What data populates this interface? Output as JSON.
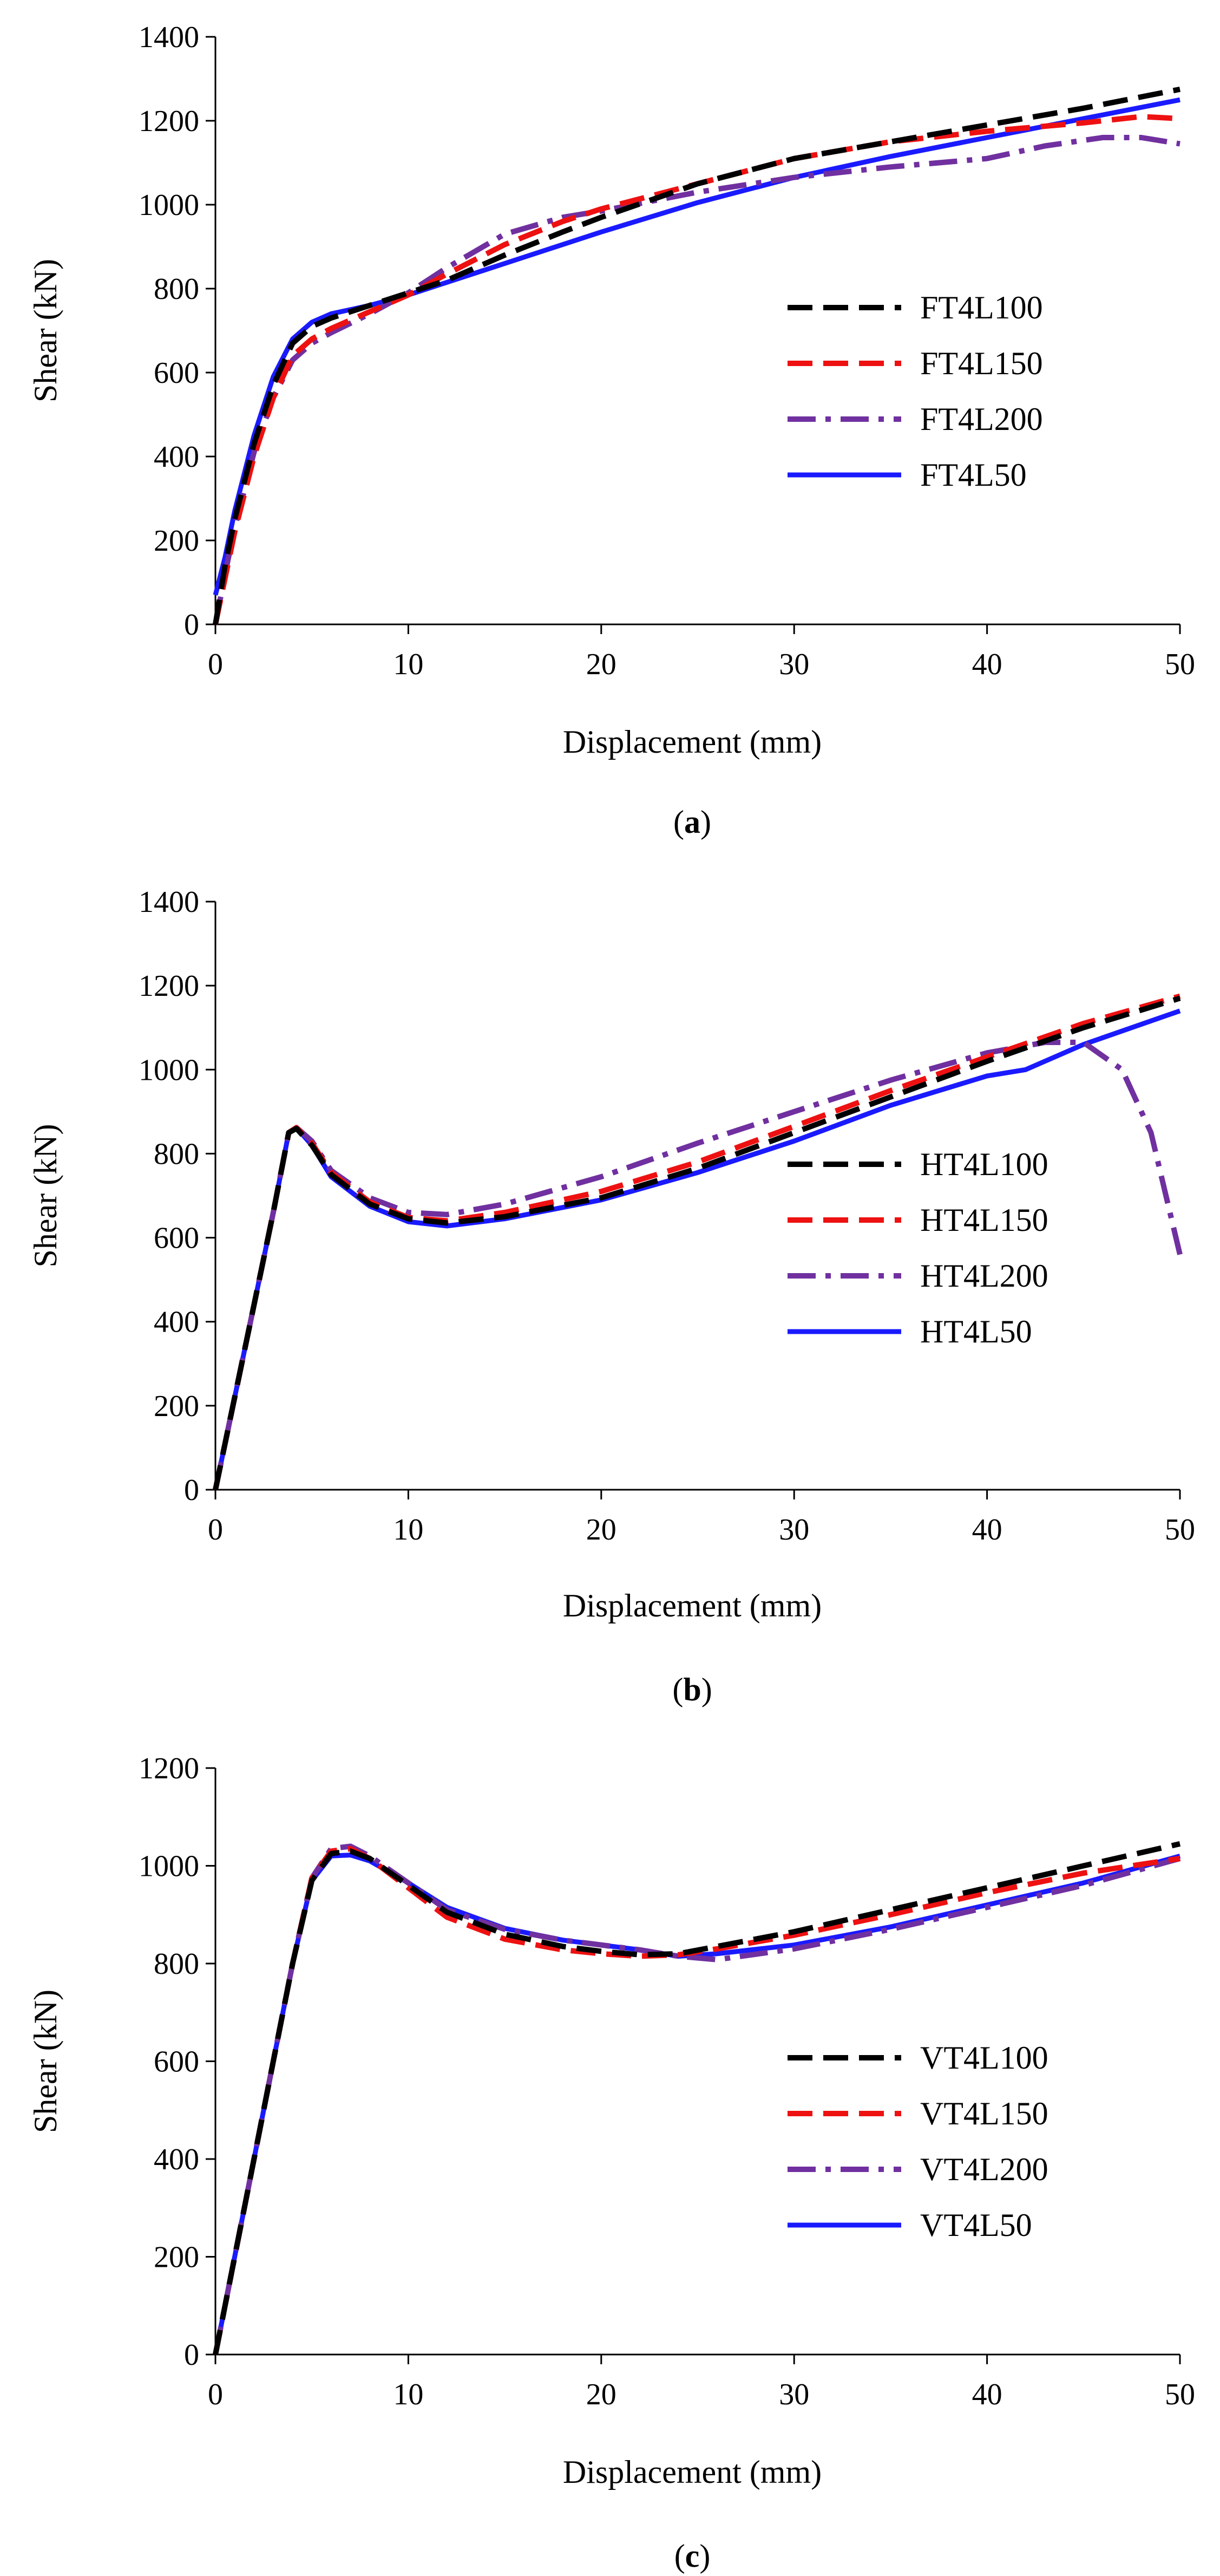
{
  "chart_data": [
    {
      "type": "line",
      "caption": "a",
      "xlabel": "Displacement (mm)",
      "ylabel": "Shear (kN)",
      "xlim": [
        0,
        50
      ],
      "ylim": [
        0,
        1400
      ],
      "xticks": [
        0,
        10,
        20,
        30,
        40,
        50
      ],
      "yticks": [
        0,
        200,
        400,
        600,
        800,
        1000,
        1200,
        1400
      ],
      "grid": false,
      "legend_position": "lower-right",
      "series": [
        {
          "name": "FT4L100",
          "color": "#000000",
          "style": "dash",
          "x": [
            0,
            0.5,
            1,
            2,
            3,
            4,
            5,
            6,
            8,
            10,
            12,
            15,
            18,
            20,
            25,
            30,
            35,
            40,
            45,
            50
          ],
          "y": [
            0,
            140,
            250,
            430,
            570,
            670,
            710,
            730,
            760,
            790,
            820,
            880,
            935,
            970,
            1050,
            1110,
            1150,
            1190,
            1230,
            1275
          ]
        },
        {
          "name": "FT4L150",
          "color": "#ee1111",
          "style": "dash",
          "x": [
            0,
            0.5,
            1,
            2,
            3,
            4,
            5,
            6,
            8,
            10,
            12,
            15,
            18,
            20,
            25,
            30,
            35,
            40,
            45,
            48,
            50
          ],
          "y": [
            0,
            110,
            220,
            400,
            540,
            640,
            680,
            705,
            745,
            785,
            835,
            905,
            960,
            990,
            1050,
            1110,
            1150,
            1175,
            1195,
            1210,
            1205
          ]
        },
        {
          "name": "FT4L200",
          "color": "#7030a0",
          "style": "dashdot",
          "x": [
            0,
            0.5,
            1,
            2,
            3,
            4,
            5,
            6,
            8,
            10,
            12,
            15,
            18,
            20,
            25,
            30,
            35,
            40,
            43,
            46,
            48,
            50
          ],
          "y": [
            0,
            120,
            230,
            410,
            540,
            630,
            670,
            695,
            740,
            790,
            850,
            930,
            970,
            985,
            1030,
            1065,
            1090,
            1110,
            1140,
            1160,
            1160,
            1145
          ]
        },
        {
          "name": "FT4L50",
          "color": "#1a1aff",
          "style": "solid",
          "x": [
            0,
            0.5,
            1,
            2,
            3,
            4,
            5,
            6,
            8,
            10,
            12,
            15,
            18,
            20,
            25,
            30,
            35,
            40,
            45,
            50
          ],
          "y": [
            70,
            160,
            270,
            450,
            590,
            680,
            720,
            740,
            760,
            785,
            815,
            860,
            905,
            935,
            1005,
            1065,
            1115,
            1160,
            1205,
            1250
          ]
        }
      ]
    },
    {
      "type": "line",
      "caption": "b",
      "xlabel": "Displacement (mm)",
      "ylabel": "Shear (kN)",
      "xlim": [
        0,
        50
      ],
      "ylim": [
        0,
        1400
      ],
      "xticks": [
        0,
        10,
        20,
        30,
        40,
        50
      ],
      "yticks": [
        0,
        200,
        400,
        600,
        800,
        1000,
        1200,
        1400
      ],
      "grid": false,
      "legend_position": "lower-right",
      "series": [
        {
          "name": "HT4L100",
          "color": "#000000",
          "style": "dash",
          "x": [
            0,
            1,
            2,
            3,
            3.8,
            4.2,
            5,
            6,
            8,
            10,
            12,
            15,
            20,
            25,
            30,
            35,
            40,
            45,
            50
          ],
          "y": [
            0,
            220,
            440,
            660,
            850,
            860,
            820,
            750,
            680,
            645,
            635,
            650,
            695,
            765,
            850,
            935,
            1020,
            1100,
            1170
          ]
        },
        {
          "name": "HT4L150",
          "color": "#ee1111",
          "style": "dash",
          "x": [
            0,
            1,
            2,
            3,
            3.8,
            4.2,
            5,
            6,
            8,
            10,
            12,
            15,
            20,
            25,
            30,
            35,
            40,
            45,
            50
          ],
          "y": [
            0,
            220,
            440,
            660,
            850,
            862,
            825,
            755,
            685,
            648,
            640,
            660,
            710,
            780,
            865,
            950,
            1030,
            1110,
            1175
          ]
        },
        {
          "name": "HT4L200",
          "color": "#7030a0",
          "style": "dashdot",
          "x": [
            0,
            1,
            2,
            3,
            3.8,
            4.2,
            5,
            6,
            8,
            10,
            12,
            15,
            20,
            25,
            30,
            35,
            40,
            43,
            45,
            47,
            48.5,
            50
          ],
          "y": [
            0,
            220,
            440,
            660,
            850,
            862,
            830,
            760,
            695,
            660,
            655,
            680,
            745,
            825,
            900,
            975,
            1040,
            1065,
            1065,
            1000,
            850,
            560
          ]
        },
        {
          "name": "HT4L50",
          "color": "#1a1aff",
          "style": "solid",
          "x": [
            0,
            1,
            2,
            3,
            3.8,
            4.2,
            5,
            6,
            8,
            10,
            12,
            15,
            20,
            25,
            30,
            35,
            40,
            42,
            45,
            50
          ],
          "y": [
            0,
            220,
            440,
            660,
            850,
            862,
            820,
            745,
            675,
            638,
            628,
            645,
            690,
            755,
            830,
            915,
            985,
            1000,
            1060,
            1140
          ]
        }
      ]
    },
    {
      "type": "line",
      "caption": "c",
      "xlabel": "Displacement (mm)",
      "ylabel": "Shear (kN)",
      "xlim": [
        0,
        50
      ],
      "ylim": [
        0,
        1200
      ],
      "xticks": [
        0,
        10,
        20,
        30,
        40,
        50
      ],
      "yticks": [
        0,
        200,
        400,
        600,
        800,
        1000,
        1200
      ],
      "grid": false,
      "legend_position": "lower-right",
      "series": [
        {
          "name": "VT4L100",
          "color": "#000000",
          "style": "dash",
          "x": [
            0,
            1,
            2,
            3,
            4,
            5,
            6,
            7,
            8,
            10,
            12,
            15,
            18,
            20,
            22,
            24,
            26,
            30,
            35,
            40,
            45,
            50
          ],
          "y": [
            0,
            200,
            400,
            600,
            800,
            970,
            1025,
            1030,
            1015,
            960,
            905,
            860,
            835,
            825,
            818,
            820,
            835,
            865,
            910,
            955,
            1000,
            1045
          ]
        },
        {
          "name": "VT4L150",
          "color": "#ee1111",
          "style": "dash",
          "x": [
            0,
            1,
            2,
            3,
            4,
            5,
            6,
            7,
            8,
            10,
            12,
            15,
            18,
            20,
            22,
            24,
            26,
            30,
            35,
            40,
            45,
            50
          ],
          "y": [
            0,
            200,
            400,
            600,
            800,
            975,
            1030,
            1035,
            1015,
            955,
            895,
            850,
            828,
            820,
            815,
            818,
            830,
            858,
            900,
            945,
            985,
            1015
          ]
        },
        {
          "name": "VT4L200",
          "color": "#7030a0",
          "style": "dashdot",
          "x": [
            0,
            1,
            2,
            3,
            4,
            5,
            6,
            7,
            8,
            10,
            12,
            15,
            18,
            20,
            22,
            24,
            26,
            30,
            35,
            40,
            45,
            50
          ],
          "y": [
            0,
            200,
            400,
            600,
            800,
            975,
            1035,
            1040,
            1020,
            965,
            910,
            870,
            848,
            838,
            828,
            815,
            808,
            830,
            870,
            915,
            960,
            1015
          ]
        },
        {
          "name": "VT4L50",
          "color": "#1a1aff",
          "style": "solid",
          "x": [
            0,
            1,
            2,
            3,
            4,
            5,
            6,
            7,
            8,
            10,
            12,
            15,
            18,
            20,
            22,
            24,
            26,
            30,
            35,
            40,
            45,
            50
          ],
          "y": [
            0,
            200,
            400,
            600,
            800,
            970,
            1020,
            1022,
            1010,
            965,
            915,
            872,
            848,
            838,
            828,
            815,
            820,
            838,
            875,
            920,
            965,
            1020
          ]
        }
      ]
    }
  ]
}
